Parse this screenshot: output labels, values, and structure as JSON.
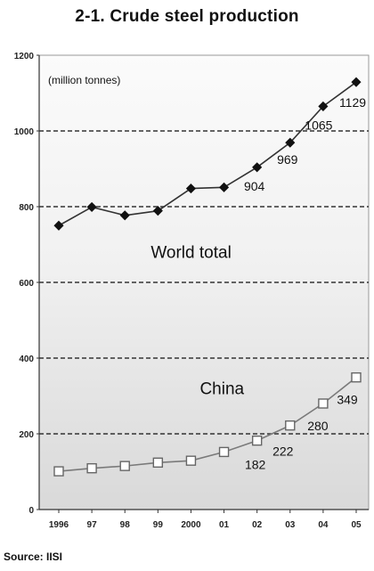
{
  "title": "2-1. Crude steel production",
  "source": "Source: IISI",
  "chart_data": {
    "type": "line",
    "unit_label": "(million tonnes)",
    "categories": [
      "1996",
      "97",
      "98",
      "99",
      "2000",
      "01",
      "02",
      "03",
      "04",
      "05"
    ],
    "ylim": [
      0,
      1200
    ],
    "yticks": [
      0,
      200,
      400,
      600,
      800,
      1000,
      1200
    ],
    "grid": true,
    "series": [
      {
        "name": "World total",
        "marker": "filled-diamond",
        "color": "#333333",
        "values": [
          750,
          799,
          777,
          789,
          848,
          851,
          904,
          969,
          1065,
          1129
        ]
      },
      {
        "name": "China",
        "marker": "open-square",
        "color": "#7a7a7a",
        "values": [
          101,
          109,
          115,
          124,
          129,
          152,
          182,
          222,
          280,
          349
        ]
      }
    ],
    "data_labels": [
      {
        "series": 0,
        "index": 6,
        "text": "904"
      },
      {
        "series": 0,
        "index": 7,
        "text": "969"
      },
      {
        "series": 0,
        "index": 8,
        "text": "1065"
      },
      {
        "series": 0,
        "index": 9,
        "text": "1129"
      },
      {
        "series": 1,
        "index": 6,
        "text": "182"
      },
      {
        "series": 1,
        "index": 7,
        "text": "222"
      },
      {
        "series": 1,
        "index": 8,
        "text": "280"
      },
      {
        "series": 1,
        "index": 9,
        "text": "349"
      }
    ]
  }
}
